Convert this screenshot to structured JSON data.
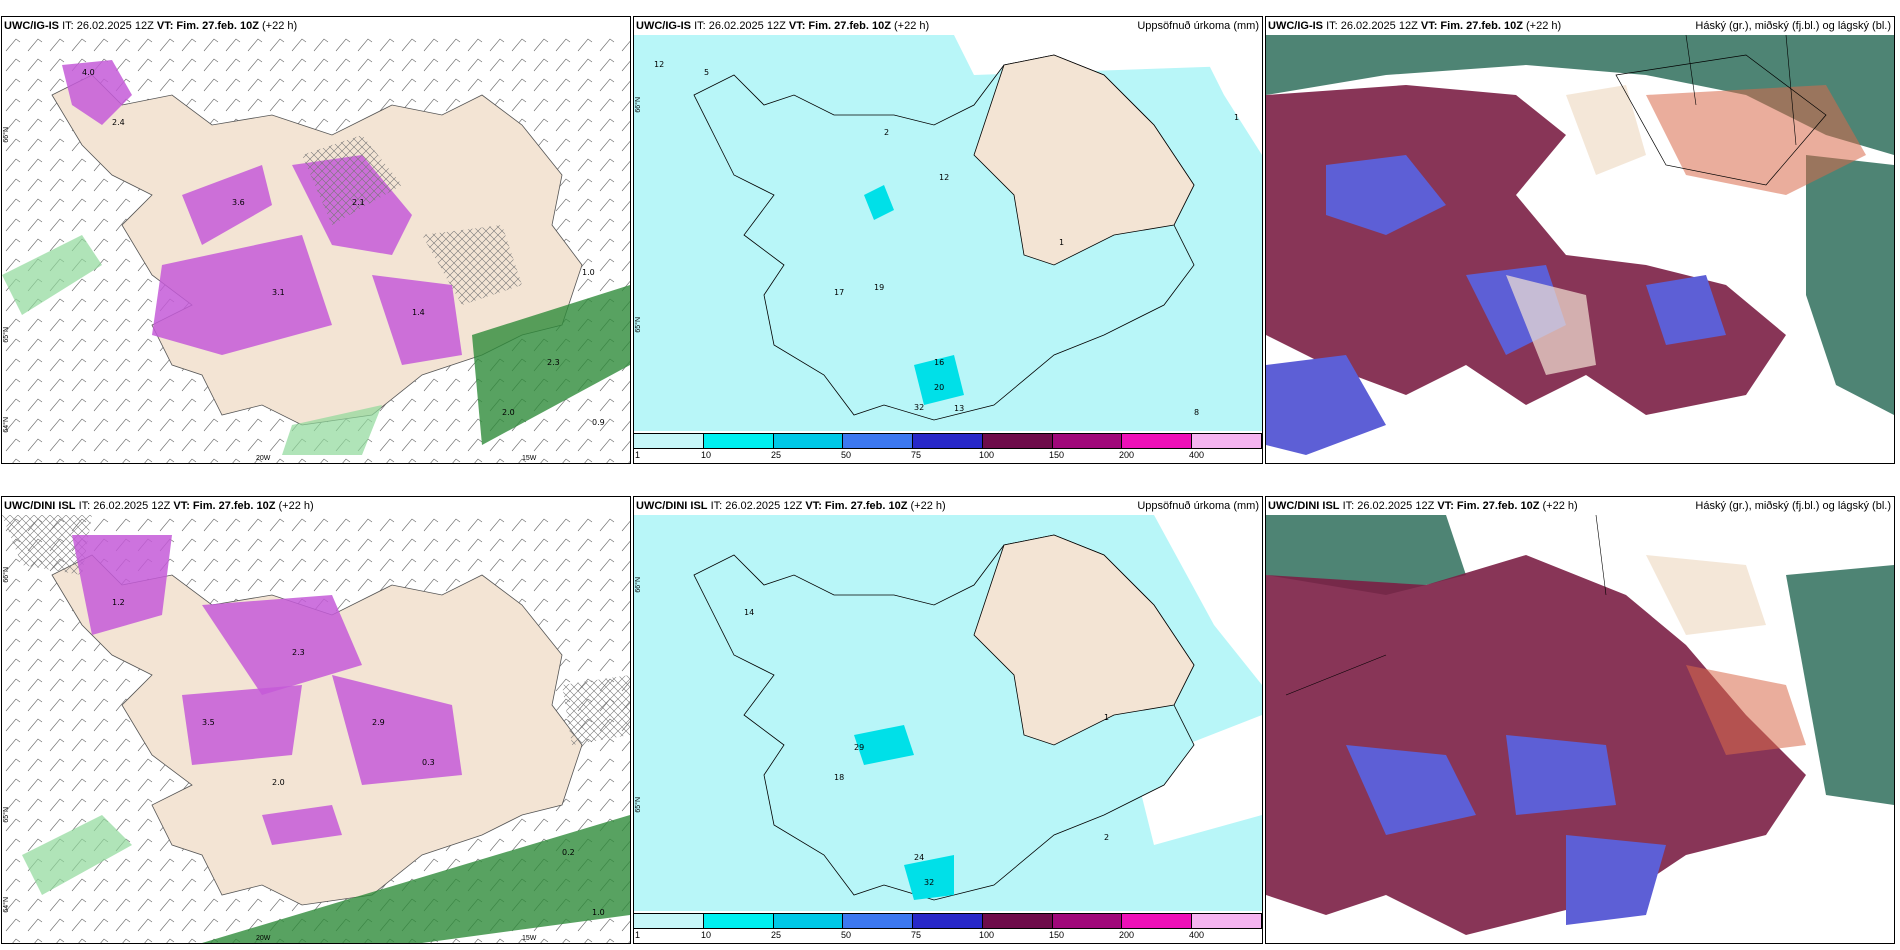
{
  "panels": [
    {
      "model": "UWC/IG-IS",
      "it": "IT: 26.02.2025 12Z",
      "vt_label": "VT:",
      "vt": "Fim. 27.feb. 10Z",
      "lead": "(+22 h)",
      "right_title": "",
      "lat_labels": [
        "66°N",
        "65°N",
        "64°N"
      ],
      "lon_labels": [
        "20W",
        "15W"
      ]
    },
    {
      "model": "UWC/IG-IS",
      "it": "IT: 26.02.2025 12Z",
      "vt_label": "VT:",
      "vt": "Fim. 27.feb. 10Z",
      "lead": "(+22 h)",
      "right_title": "Uppsöfnuð úrkoma (mm)",
      "lat_labels": [
        "66°N",
        "65°N"
      ],
      "lon_labels": []
    },
    {
      "model": "UWC/IG-IS",
      "it": "IT: 26.02.2025 12Z",
      "vt_label": "VT:",
      "vt": "Fim. 27.feb. 10Z",
      "lead": "(+22 h)",
      "right_title": "Háský (gr.), miðský (fj.bl.) og lágský (bl.)",
      "lat_labels": [],
      "lon_labels": []
    },
    {
      "model": "UWC/DINI ISL",
      "it": "IT: 26.02.2025 12Z",
      "vt_label": "VT:",
      "vt": "Fim. 27.feb. 10Z",
      "lead": "(+22 h)",
      "right_title": "",
      "lat_labels": [
        "66°N",
        "65°N",
        "64°N"
      ],
      "lon_labels": [
        "20W",
        "15W"
      ]
    },
    {
      "model": "UWC/DINI ISL",
      "it": "IT: 26.02.2025 12Z",
      "vt_label": "VT:",
      "vt": "Fim. 27.feb. 10Z",
      "lead": "(+22 h)",
      "right_title": "Uppsöfnuð úrkoma (mm)",
      "lat_labels": [
        "66°N",
        "65°N"
      ],
      "lon_labels": []
    },
    {
      "model": "UWC/DINI ISL",
      "it": "IT: 26.02.2025 12Z",
      "vt_label": "VT:",
      "vt": "Fim. 27.feb. 10Z",
      "lead": "(+22 h)",
      "right_title": "Háský (gr.), miðský (fj.bl.) og lágský (bl.)",
      "lat_labels": [],
      "lon_labels": []
    }
  ],
  "colorbar": {
    "labels": [
      "1",
      "10",
      "25",
      "50",
      "75",
      "100",
      "150",
      "200",
      "400"
    ],
    "colors": [
      "#c6f6f8",
      "#00f0f0",
      "#00c8e6",
      "#3c78f0",
      "#2828c8",
      "#6e0c4a",
      "#a0087a",
      "#ee10b8",
      "#f4b4f0"
    ]
  },
  "colors": {
    "land": "#f3e4d4",
    "sea_precip": "#b8f6f8",
    "snow_magenta": "#c45ad8",
    "green_precip": "#2e8b3a",
    "high_cloud": "#2f6e5c",
    "mid_cloud": "#7b1f45",
    "low_cloud": "#5d5fd6"
  }
}
